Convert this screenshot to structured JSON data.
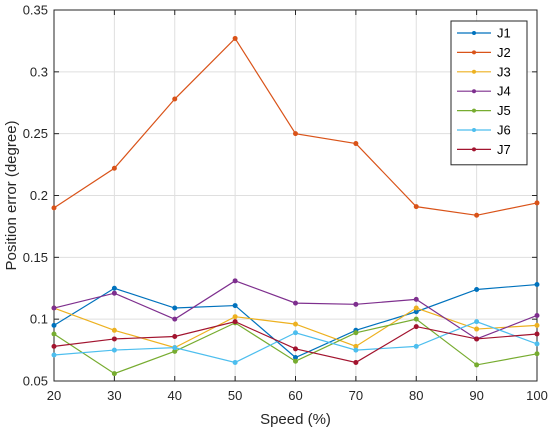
{
  "chart_data": {
    "type": "line",
    "title": "",
    "xlabel": "Speed (%)",
    "ylabel": "Position error (degree)",
    "x": [
      20,
      30,
      40,
      50,
      60,
      70,
      80,
      90,
      100
    ],
    "xlim": [
      20,
      100
    ],
    "ylim": [
      0.05,
      0.35
    ],
    "xticks": [
      "20",
      "30",
      "40",
      "50",
      "60",
      "70",
      "80",
      "90",
      "100"
    ],
    "yticks": [
      "0.05",
      "0.1",
      "0.15",
      "0.2",
      "0.25",
      "0.3",
      "0.35"
    ],
    "ytick_values": [
      0.05,
      0.1,
      0.15,
      0.2,
      0.25,
      0.3,
      0.35
    ],
    "grid": true,
    "legend_position": "top-right",
    "series": [
      {
        "name": "J1",
        "color": "#0072BD",
        "values": [
          0.095,
          0.125,
          0.109,
          0.111,
          0.069,
          0.091,
          0.106,
          0.124,
          0.128
        ]
      },
      {
        "name": "J2",
        "color": "#D95319",
        "values": [
          0.19,
          0.222,
          0.278,
          0.327,
          0.25,
          0.242,
          0.191,
          0.184,
          0.194
        ]
      },
      {
        "name": "J3",
        "color": "#EDB120",
        "values": [
          0.109,
          0.091,
          0.077,
          0.102,
          0.096,
          0.078,
          0.109,
          0.092,
          0.095
        ]
      },
      {
        "name": "J4",
        "color": "#7E2F8E",
        "values": [
          0.109,
          0.121,
          0.1,
          0.131,
          0.113,
          0.112,
          0.116,
          0.084,
          0.103
        ]
      },
      {
        "name": "J5",
        "color": "#77AC30",
        "values": [
          0.088,
          0.056,
          0.074,
          0.097,
          0.066,
          0.089,
          0.1,
          0.063,
          0.072
        ]
      },
      {
        "name": "J6",
        "color": "#4DBEEE",
        "values": [
          0.071,
          0.075,
          0.077,
          0.065,
          0.089,
          0.075,
          0.078,
          0.098,
          0.08
        ]
      },
      {
        "name": "J7",
        "color": "#A2142F",
        "values": [
          0.078,
          0.084,
          0.086,
          0.098,
          0.076,
          0.065,
          0.094,
          0.084,
          0.088
        ]
      }
    ]
  }
}
